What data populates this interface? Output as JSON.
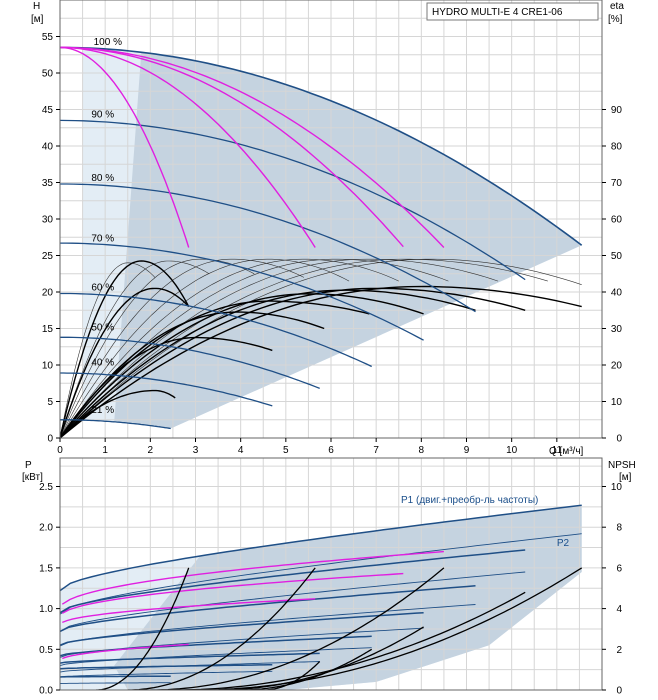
{
  "chart_data": [
    {
      "type": "line",
      "panel": "head",
      "title": "HYDRO MULTI-E 4 CRE1-06",
      "ylabel_left": "H",
      "ylabel_left_unit": "[м]",
      "ylabel_right": "eta",
      "ylabel_right_unit": "[%]",
      "xlabel": "Q [м³/ч]",
      "xlim": [
        0,
        12
      ],
      "ylim": [
        0,
        60
      ],
      "ylim_right": [
        0,
        120
      ],
      "x_ticks": [
        0,
        1,
        2,
        3,
        4,
        5,
        6,
        7,
        8,
        9,
        10,
        11
      ],
      "y_ticks": [
        0,
        5,
        10,
        15,
        20,
        25,
        30,
        35,
        40,
        45,
        50,
        55
      ],
      "y_ticks_right": [
        0,
        10,
        20,
        30,
        40,
        50,
        60,
        70,
        80,
        90
      ],
      "grid": true,
      "colors": {
        "head": "#1f4f86",
        "system": "#e020e0",
        "efficiency": "#000000",
        "envelope": "#c5d3e0",
        "envelope_light": "#e3edf5"
      },
      "speed_labels": [
        {
          "text": "100 %",
          "q": 0.7,
          "h": 53.4
        },
        {
          "text": "90 %",
          "q": 0.65,
          "h": 43.5
        },
        {
          "text": "80 %",
          "q": 0.65,
          "h": 34.8
        },
        {
          "text": "70 %",
          "q": 0.65,
          "h": 26.5
        },
        {
          "text": "60 %",
          "q": 0.65,
          "h": 19.8
        },
        {
          "text": "50 %",
          "q": 0.65,
          "h": 14.3
        },
        {
          "text": "40 %",
          "q": 0.65,
          "h": 9.5
        },
        {
          "text": "21 %",
          "q": 0.65,
          "h": 3.0
        }
      ],
      "head_curves": [
        {
          "speed": 100,
          "h0": 53.5,
          "qmax": 11.55,
          "hend": 26.4
        },
        {
          "speed": 90,
          "h0": 43.5,
          "qmax": 10.3,
          "hend": 21.7
        },
        {
          "speed": 80,
          "h0": 34.8,
          "qmax": 9.2,
          "hend": 17.3
        },
        {
          "speed": 70,
          "h0": 26.7,
          "qmax": 8.05,
          "hend": 13.4
        },
        {
          "speed": 60,
          "h0": 19.8,
          "qmax": 6.9,
          "hend": 9.8
        },
        {
          "speed": 50,
          "h0": 13.8,
          "qmax": 5.75,
          "hend": 6.8
        },
        {
          "speed": 40,
          "h0": 8.9,
          "qmax": 4.7,
          "hend": 4.4
        },
        {
          "speed": 21,
          "h0": 2.5,
          "qmax": 2.45,
          "hend": 1.3
        }
      ],
      "system_curves": [
        {
          "h0": 53.5,
          "q_end": 2.85,
          "h_end": 26.1
        },
        {
          "h0": 53.5,
          "q_end": 5.65,
          "h_end": 26.1
        },
        {
          "h0": 53.5,
          "q_end": 7.6,
          "h_end": 26.2
        },
        {
          "h0": 53.5,
          "q_end": 8.5,
          "h_end": 26.1
        }
      ],
      "efficiency_curves": [
        {
          "peak_q": 1.8,
          "peak_eta": 48.5,
          "q_end": 2.85,
          "eta_end": 36
        },
        {
          "peak_q": 2.1,
          "peak_eta": 41,
          "q_end": 2.85,
          "eta_end": 36
        },
        {
          "peak_q": 2.1,
          "peak_eta": 13,
          "q_end": 2.55,
          "eta_end": 11
        },
        {
          "peak_q": 3.0,
          "peak_eta": 27.5,
          "q_end": 4.7,
          "eta_end": 24
        },
        {
          "peak_q": 3.9,
          "peak_eta": 34.5,
          "q_end": 5.85,
          "eta_end": 30
        },
        {
          "peak_q": 4.6,
          "peak_eta": 37.5,
          "q_end": 6.85,
          "eta_end": 34
        },
        {
          "peak_q": 5.5,
          "peak_eta": 39.5,
          "q_end": 8.05,
          "eta_end": 34
        },
        {
          "peak_q": 6.3,
          "peak_eta": 40.5,
          "q_end": 9.2,
          "eta_end": 35
        },
        {
          "peak_q": 7.0,
          "peak_eta": 41,
          "q_end": 10.3,
          "eta_end": 35
        },
        {
          "peak_q": 8.0,
          "peak_eta": 41.5,
          "q_end": 11.55,
          "eta_end": 36
        }
      ],
      "efficiency_thin_curves": [
        {
          "peak_q": 1.5,
          "peak_eta": 48,
          "q_end": 2.1,
          "eta_end": 44
        },
        {
          "peak_q": 2.4,
          "peak_eta": 48.5,
          "q_end": 3.3,
          "eta_end": 45
        },
        {
          "peak_q": 3.1,
          "peak_eta": 49,
          "q_end": 4.3,
          "eta_end": 45
        },
        {
          "peak_q": 3.8,
          "peak_eta": 49,
          "q_end": 5.4,
          "eta_end": 44
        },
        {
          "peak_q": 4.6,
          "peak_eta": 49,
          "q_end": 6.4,
          "eta_end": 43
        },
        {
          "peak_q": 5.4,
          "peak_eta": 49,
          "q_end": 7.5,
          "eta_end": 43
        },
        {
          "peak_q": 6.1,
          "peak_eta": 49,
          "q_end": 8.6,
          "eta_end": 43
        },
        {
          "peak_q": 6.8,
          "peak_eta": 49,
          "q_end": 9.7,
          "eta_end": 43
        },
        {
          "peak_q": 7.6,
          "peak_eta": 49,
          "q_end": 10.8,
          "eta_end": 43
        },
        {
          "peak_q": 8.2,
          "peak_eta": 49,
          "q_end": 11.55,
          "eta_end": 42
        }
      ]
    },
    {
      "type": "line",
      "panel": "power",
      "ylabel_left": "P",
      "ylabel_left_unit": "[кВт]",
      "ylabel_right": "NPSH",
      "ylabel_right_unit": "[м]",
      "xlim": [
        0,
        12
      ],
      "ylim": [
        0,
        2.85
      ],
      "ylim_right": [
        0,
        11.4
      ],
      "y_ticks": [
        0.0,
        0.5,
        1.0,
        1.5,
        2.0,
        2.5
      ],
      "y_tick_labels": [
        "0.0",
        "0.5",
        "1.0",
        "1.5",
        "2.0",
        "2.5"
      ],
      "y_ticks_right": [
        0,
        2,
        4,
        6,
        8,
        10
      ],
      "grid": true,
      "series_labels": [
        {
          "text": "P1 (двиг.+преобр-ль частоты)",
          "q": 7.55,
          "p": 2.3
        },
        {
          "text": "P2",
          "q": 11.0,
          "p": 1.77
        }
      ],
      "p1_curves": [
        {
          "p0": 1.22,
          "q_end": 11.55,
          "p_end": 2.27
        },
        {
          "p0": 0.95,
          "q_end": 10.3,
          "p_end": 1.72
        },
        {
          "p0": 0.72,
          "q_end": 9.2,
          "p_end": 1.28
        },
        {
          "p0": 0.55,
          "q_end": 8.05,
          "p_end": 0.95
        },
        {
          "p0": 0.42,
          "q_end": 6.9,
          "p_end": 0.66
        },
        {
          "p0": 0.33,
          "q_end": 5.75,
          "p_end": 0.45
        },
        {
          "p0": 0.26,
          "q_end": 4.7,
          "p_end": 0.31
        },
        {
          "p0": 0.16,
          "q_end": 2.45,
          "p_end": 0.17
        }
      ],
      "p2_curves": [
        {
          "p0": 0.93,
          "q_end": 11.55,
          "p_end": 1.92
        },
        {
          "p0": 0.72,
          "q_end": 10.3,
          "p_end": 1.45
        },
        {
          "p0": 0.54,
          "q_end": 9.2,
          "p_end": 1.05
        },
        {
          "p0": 0.4,
          "q_end": 8.05,
          "p_end": 0.76
        },
        {
          "p0": 0.3,
          "q_end": 6.9,
          "p_end": 0.52
        },
        {
          "p0": 0.22,
          "q_end": 5.75,
          "p_end": 0.35
        },
        {
          "p0": 0.16,
          "q_end": 4.7,
          "p_end": 0.23
        },
        {
          "p0": 0.08,
          "q_end": 2.45,
          "p_end": 0.09
        }
      ],
      "system_power_curves": [
        {
          "p0": 0.36,
          "q_end": 2.85,
          "p_end": 0.56
        },
        {
          "p0": 0.8,
          "q_end": 5.65,
          "p_end": 1.12
        },
        {
          "p0": 0.9,
          "q_end": 7.6,
          "p_end": 1.43
        },
        {
          "p0": 1.0,
          "q_end": 8.5,
          "p_end": 1.7
        }
      ],
      "npsh_curves": [
        {
          "q_start": 0.8,
          "q_end": 2.85,
          "n_end": 6.0
        },
        {
          "q_start": 1.5,
          "q_end": 5.65,
          "n_end": 6.0
        },
        {
          "q_start": 2.0,
          "q_end": 8.5,
          "n_end": 6.0
        },
        {
          "q_start": 2.5,
          "q_end": 10.3,
          "n_end": 4.8
        },
        {
          "q_start": 3.0,
          "q_end": 11.55,
          "n_end": 6.0
        },
        {
          "q_start": 3.5,
          "q_end": 8.05,
          "n_end": 3.1
        },
        {
          "q_start": 4.0,
          "q_end": 6.9,
          "n_end": 2.0
        },
        {
          "q_start": 4.5,
          "q_end": 5.75,
          "n_end": 1.4
        }
      ]
    }
  ]
}
